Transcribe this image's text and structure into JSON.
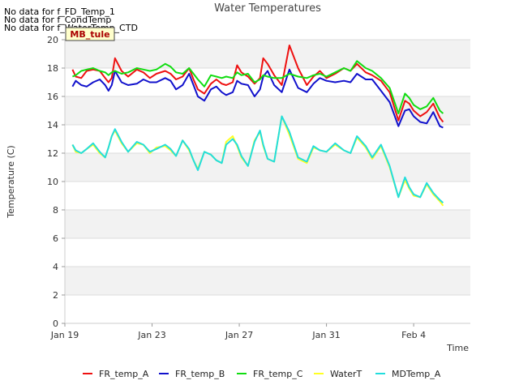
{
  "no_data_messages": [
    "No data for f_FD_Temp_1",
    "No data for f_CondTemp",
    "No data for f_WaterTemp_CTD"
  ],
  "site_label": "MB_tule",
  "chart_data": {
    "type": "line",
    "title": "Water Temperatures",
    "xlabel": "Time",
    "ylabel": "Temperature (C)",
    "xlim": [
      0,
      18.6
    ],
    "ylim": [
      0,
      20
    ],
    "x_tick_positions": [
      0,
      4,
      8,
      12,
      16
    ],
    "x_tick_labels": [
      "Jan 19",
      "Jan 23",
      "Jan 27",
      "Jan 31",
      "Feb 4"
    ],
    "y_ticks": [
      0,
      2,
      4,
      6,
      8,
      10,
      12,
      14,
      16,
      18,
      20
    ],
    "x_unit": "days since Jan 19",
    "grid": "horizontal bands",
    "legend_position": "bottom",
    "series": [
      {
        "name": "FR_temp_A",
        "color": "#ee1111",
        "x": [
          0.35,
          0.5,
          0.75,
          1.0,
          1.3,
          1.6,
          1.85,
          2.0,
          2.15,
          2.3,
          2.6,
          2.9,
          3.3,
          3.6,
          3.9,
          4.2,
          4.6,
          4.85,
          5.1,
          5.4,
          5.7,
          5.9,
          6.1,
          6.4,
          6.7,
          6.95,
          7.2,
          7.4,
          7.7,
          7.9,
          8.1,
          8.4,
          8.7,
          8.95,
          9.1,
          9.3,
          9.6,
          9.95,
          10.3,
          10.7,
          11.1,
          11.4,
          11.7,
          12.0,
          12.4,
          12.8,
          13.1,
          13.4,
          13.8,
          14.1,
          14.5,
          14.9,
          15.3,
          15.6,
          15.8,
          16.0,
          16.3,
          16.6,
          16.9,
          17.2,
          17.35
        ],
        "y": [
          17.9,
          17.4,
          17.3,
          17.8,
          17.9,
          17.8,
          17.3,
          17.0,
          17.3,
          18.7,
          17.8,
          17.4,
          17.9,
          17.7,
          17.3,
          17.6,
          17.8,
          17.6,
          17.2,
          17.4,
          18.0,
          17.2,
          16.5,
          16.2,
          16.9,
          17.2,
          16.9,
          16.8,
          17.0,
          18.2,
          17.7,
          17.4,
          16.9,
          17.3,
          18.7,
          18.3,
          17.5,
          16.8,
          19.6,
          18.0,
          16.8,
          17.4,
          17.8,
          17.3,
          17.6,
          18.0,
          17.8,
          18.3,
          17.7,
          17.5,
          17.1,
          16.3,
          14.3,
          15.7,
          15.5,
          15.0,
          14.6,
          14.9,
          15.5,
          14.5,
          14.2
        ]
      },
      {
        "name": "FR_temp_B",
        "color": "#1111cc",
        "x": [
          0.35,
          0.5,
          0.75,
          1.0,
          1.3,
          1.6,
          1.85,
          2.0,
          2.15,
          2.3,
          2.6,
          2.9,
          3.3,
          3.6,
          3.9,
          4.2,
          4.6,
          4.85,
          5.1,
          5.4,
          5.7,
          5.9,
          6.1,
          6.4,
          6.7,
          6.95,
          7.2,
          7.4,
          7.7,
          7.9,
          8.1,
          8.4,
          8.7,
          8.95,
          9.1,
          9.3,
          9.6,
          9.95,
          10.3,
          10.7,
          11.1,
          11.4,
          11.7,
          12.0,
          12.4,
          12.8,
          13.1,
          13.4,
          13.8,
          14.1,
          14.5,
          14.9,
          15.3,
          15.6,
          15.8,
          16.0,
          16.3,
          16.6,
          16.9,
          17.2,
          17.35
        ],
        "y": [
          16.7,
          17.1,
          16.8,
          16.7,
          17.0,
          17.2,
          16.8,
          16.4,
          16.8,
          17.8,
          17.0,
          16.8,
          16.9,
          17.2,
          17.0,
          17.0,
          17.3,
          17.1,
          16.5,
          16.8,
          17.6,
          16.8,
          16.0,
          15.7,
          16.5,
          16.7,
          16.3,
          16.1,
          16.3,
          17.1,
          16.9,
          16.8,
          16.0,
          16.5,
          17.4,
          17.8,
          16.8,
          16.3,
          17.9,
          16.6,
          16.3,
          16.9,
          17.3,
          17.1,
          17.0,
          17.1,
          17.0,
          17.6,
          17.2,
          17.2,
          16.4,
          15.6,
          13.9,
          15.0,
          15.1,
          14.6,
          14.2,
          14.1,
          14.9,
          13.9,
          13.8
        ]
      },
      {
        "name": "FR_temp_C",
        "color": "#11dd11",
        "x": [
          0.35,
          0.5,
          0.75,
          1.0,
          1.3,
          1.6,
          1.85,
          2.0,
          2.15,
          2.3,
          2.6,
          2.9,
          3.3,
          3.6,
          3.9,
          4.2,
          4.6,
          4.85,
          5.1,
          5.4,
          5.7,
          5.9,
          6.1,
          6.4,
          6.7,
          6.95,
          7.2,
          7.4,
          7.7,
          7.9,
          8.1,
          8.4,
          8.7,
          8.95,
          9.1,
          9.3,
          9.6,
          9.95,
          10.3,
          10.7,
          11.1,
          11.4,
          11.7,
          12.0,
          12.4,
          12.8,
          13.1,
          13.4,
          13.8,
          14.1,
          14.5,
          14.9,
          15.3,
          15.6,
          15.8,
          16.0,
          16.3,
          16.6,
          16.9,
          17.2,
          17.35
        ],
        "y": [
          17.4,
          17.5,
          17.8,
          17.9,
          18.0,
          17.8,
          17.7,
          17.5,
          17.7,
          17.8,
          17.6,
          17.7,
          18.0,
          17.9,
          17.8,
          17.9,
          18.3,
          18.1,
          17.7,
          17.6,
          18.0,
          17.6,
          17.2,
          16.7,
          17.5,
          17.4,
          17.3,
          17.4,
          17.3,
          17.7,
          17.5,
          17.6,
          17.0,
          17.2,
          17.5,
          17.4,
          17.3,
          17.3,
          17.6,
          17.4,
          17.3,
          17.5,
          17.6,
          17.4,
          17.7,
          18.0,
          17.8,
          18.5,
          18.0,
          17.8,
          17.3,
          16.6,
          14.8,
          16.2,
          15.9,
          15.4,
          15.1,
          15.3,
          15.9,
          15.0,
          14.8
        ]
      },
      {
        "name": "WaterT",
        "color": "#ffff22",
        "x": [
          0.35,
          0.5,
          0.75,
          1.0,
          1.3,
          1.6,
          1.85,
          2.0,
          2.15,
          2.3,
          2.6,
          2.9,
          3.3,
          3.6,
          3.9,
          4.2,
          4.6,
          4.85,
          5.1,
          5.4,
          5.7,
          5.9,
          6.1,
          6.4,
          6.7,
          6.95,
          7.2,
          7.4,
          7.7,
          7.9,
          8.1,
          8.4,
          8.7,
          8.95,
          9.1,
          9.3,
          9.6,
          9.95,
          10.3,
          10.7,
          11.1,
          11.4,
          11.7,
          12.0,
          12.4,
          12.8,
          13.1,
          13.4,
          13.8,
          14.1,
          14.5,
          14.9,
          15.3,
          15.6,
          15.8,
          16.0,
          16.3,
          16.6,
          16.9,
          17.2,
          17.35
        ],
        "y": [
          12.6,
          12.1,
          12.0,
          12.3,
          12.6,
          12.0,
          11.7,
          12.4,
          13.2,
          13.6,
          12.7,
          12.1,
          12.7,
          12.6,
          12.0,
          12.4,
          12.5,
          12.2,
          11.8,
          12.9,
          12.2,
          11.5,
          10.9,
          12.1,
          11.9,
          11.5,
          11.3,
          12.8,
          13.2,
          12.5,
          11.7,
          11.1,
          12.9,
          13.5,
          12.5,
          11.6,
          11.4,
          14.6,
          13.3,
          11.6,
          11.3,
          12.4,
          12.2,
          12.1,
          12.6,
          12.2,
          12.0,
          13.1,
          12.4,
          11.6,
          12.5,
          11.0,
          8.9,
          10.1,
          9.5,
          9.0,
          8.9,
          9.8,
          9.1,
          8.6,
          8.3
        ]
      },
      {
        "name": "MDTemp_A",
        "color": "#22dddd",
        "x": [
          0.35,
          0.5,
          0.75,
          1.0,
          1.3,
          1.6,
          1.85,
          2.0,
          2.15,
          2.3,
          2.6,
          2.9,
          3.3,
          3.6,
          3.9,
          4.2,
          4.6,
          4.85,
          5.1,
          5.4,
          5.7,
          5.9,
          6.1,
          6.4,
          6.7,
          6.95,
          7.2,
          7.4,
          7.7,
          7.9,
          8.1,
          8.4,
          8.7,
          8.95,
          9.1,
          9.3,
          9.6,
          9.95,
          10.3,
          10.7,
          11.1,
          11.4,
          11.7,
          12.0,
          12.4,
          12.8,
          13.1,
          13.4,
          13.8,
          14.1,
          14.5,
          14.9,
          15.3,
          15.6,
          15.8,
          16.0,
          16.3,
          16.6,
          16.9,
          17.2,
          17.35
        ],
        "y": [
          12.6,
          12.2,
          12.0,
          12.3,
          12.7,
          12.1,
          11.7,
          12.4,
          13.2,
          13.7,
          12.8,
          12.1,
          12.8,
          12.6,
          12.1,
          12.3,
          12.6,
          12.3,
          11.8,
          12.9,
          12.3,
          11.5,
          10.8,
          12.1,
          11.9,
          11.5,
          11.3,
          12.6,
          13.0,
          12.6,
          11.8,
          11.1,
          12.8,
          13.6,
          12.6,
          11.6,
          11.4,
          14.6,
          13.5,
          11.7,
          11.4,
          12.5,
          12.2,
          12.1,
          12.7,
          12.2,
          12.0,
          13.2,
          12.5,
          11.7,
          12.6,
          11.1,
          8.9,
          10.3,
          9.6,
          9.1,
          8.9,
          9.9,
          9.2,
          8.7,
          8.5
        ]
      }
    ]
  }
}
